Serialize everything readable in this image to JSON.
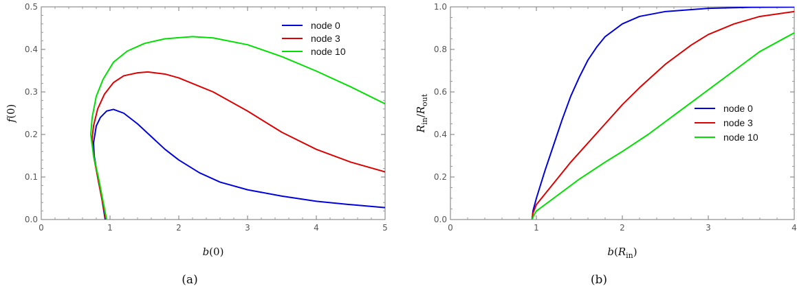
{
  "chart_data": [
    {
      "type": "line",
      "caption": "(a)",
      "xlim": [
        0,
        5
      ],
      "ylim": [
        0,
        0.5
      ],
      "x_ticks": [
        "0",
        "1",
        "2",
        "3",
        "4",
        "5"
      ],
      "y_ticks": [
        "0.0",
        "0.1",
        "0.2",
        "0.3",
        "0.4",
        "0.5"
      ],
      "xlabel": {
        "fn": "b",
        "arg": "0"
      },
      "ylabel": {
        "fn": "f",
        "arg": "0"
      },
      "legend_position": "top-right",
      "series": [
        {
          "name": "node 0",
          "color": "#0000dd",
          "points": [
            [
              0.93,
              0
            ],
            [
              0.88,
              0.05
            ],
            [
              0.82,
              0.1
            ],
            [
              0.77,
              0.15
            ],
            [
              0.76,
              0.18
            ],
            [
              0.78,
              0.2
            ],
            [
              0.8,
              0.22
            ],
            [
              0.86,
              0.24
            ],
            [
              0.95,
              0.255
            ],
            [
              1.05,
              0.259
            ],
            [
              1.2,
              0.25
            ],
            [
              1.4,
              0.225
            ],
            [
              1.6,
              0.195
            ],
            [
              1.8,
              0.165
            ],
            [
              2.0,
              0.14
            ],
            [
              2.3,
              0.11
            ],
            [
              2.6,
              0.088
            ],
            [
              3.0,
              0.07
            ],
            [
              3.5,
              0.055
            ],
            [
              4.0,
              0.043
            ],
            [
              4.5,
              0.035
            ],
            [
              5.0,
              0.028
            ]
          ]
        },
        {
          "name": "node 3",
          "color": "#dd0000",
          "points": [
            [
              0.94,
              0
            ],
            [
              0.88,
              0.05
            ],
            [
              0.82,
              0.1
            ],
            [
              0.76,
              0.15
            ],
            [
              0.74,
              0.19
            ],
            [
              0.76,
              0.22
            ],
            [
              0.82,
              0.26
            ],
            [
              0.92,
              0.295
            ],
            [
              1.05,
              0.322
            ],
            [
              1.2,
              0.338
            ],
            [
              1.4,
              0.345
            ],
            [
              1.55,
              0.347
            ],
            [
              1.8,
              0.342
            ],
            [
              2.0,
              0.333
            ],
            [
              2.5,
              0.3
            ],
            [
              3.0,
              0.255
            ],
            [
              3.5,
              0.205
            ],
            [
              4.0,
              0.165
            ],
            [
              4.5,
              0.135
            ],
            [
              5.0,
              0.112
            ]
          ]
        },
        {
          "name": "node 10",
          "color": "#00e000",
          "points": [
            [
              0.95,
              0
            ],
            [
              0.89,
              0.05
            ],
            [
              0.83,
              0.1
            ],
            [
              0.76,
              0.15
            ],
            [
              0.72,
              0.2
            ],
            [
              0.74,
              0.24
            ],
            [
              0.8,
              0.29
            ],
            [
              0.9,
              0.33
            ],
            [
              1.05,
              0.37
            ],
            [
              1.25,
              0.396
            ],
            [
              1.5,
              0.414
            ],
            [
              1.8,
              0.425
            ],
            [
              2.2,
              0.43
            ],
            [
              2.5,
              0.427
            ],
            [
              3.0,
              0.411
            ],
            [
              3.5,
              0.383
            ],
            [
              4.0,
              0.349
            ],
            [
              4.5,
              0.312
            ],
            [
              5.0,
              0.272
            ]
          ]
        }
      ]
    },
    {
      "type": "line",
      "caption": "(b)",
      "xlim": [
        0,
        4
      ],
      "ylim": [
        0,
        1.0
      ],
      "x_ticks": [
        "0",
        "1",
        "2",
        "3",
        "4"
      ],
      "y_ticks": [
        "0.0",
        "0.2",
        "0.4",
        "0.6",
        "0.8",
        "1.0"
      ],
      "xlabel": {
        "fn": "b",
        "arg": "R",
        "arg_sub": "in"
      },
      "ylabel": {
        "num": "R",
        "num_sub": "in",
        "den": "R",
        "den_sub": "out"
      },
      "legend_position": "center-right",
      "series": [
        {
          "name": "node 0",
          "color": "#0000dd",
          "points": [
            [
              0.95,
              0
            ],
            [
              0.96,
              0.04
            ],
            [
              1.0,
              0.1
            ],
            [
              1.1,
              0.23
            ],
            [
              1.2,
              0.35
            ],
            [
              1.3,
              0.47
            ],
            [
              1.4,
              0.58
            ],
            [
              1.5,
              0.67
            ],
            [
              1.6,
              0.75
            ],
            [
              1.7,
              0.81
            ],
            [
              1.8,
              0.86
            ],
            [
              2.0,
              0.92
            ],
            [
              2.2,
              0.955
            ],
            [
              2.5,
              0.978
            ],
            [
              3.0,
              0.993
            ],
            [
              3.5,
              0.998
            ],
            [
              4.0,
              0.999
            ]
          ]
        },
        {
          "name": "node 3",
          "color": "#dd0000",
          "points": [
            [
              0.95,
              0
            ],
            [
              0.96,
              0.03
            ],
            [
              1.0,
              0.07
            ],
            [
              1.2,
              0.17
            ],
            [
              1.4,
              0.27
            ],
            [
              1.6,
              0.36
            ],
            [
              1.8,
              0.45
            ],
            [
              2.0,
              0.54
            ],
            [
              2.2,
              0.62
            ],
            [
              2.5,
              0.73
            ],
            [
              2.8,
              0.82
            ],
            [
              3.0,
              0.87
            ],
            [
              3.3,
              0.92
            ],
            [
              3.6,
              0.955
            ],
            [
              4.0,
              0.978
            ]
          ]
        },
        {
          "name": "node 10",
          "color": "#00e000",
          "points": [
            [
              0.95,
              0
            ],
            [
              0.97,
              0.02
            ],
            [
              1.0,
              0.04
            ],
            [
              1.2,
              0.1
            ],
            [
              1.5,
              0.19
            ],
            [
              1.8,
              0.27
            ],
            [
              2.0,
              0.32
            ],
            [
              2.3,
              0.4
            ],
            [
              2.6,
              0.49
            ],
            [
              3.0,
              0.61
            ],
            [
              3.3,
              0.7
            ],
            [
              3.6,
              0.79
            ],
            [
              4.0,
              0.878
            ]
          ]
        }
      ]
    }
  ]
}
